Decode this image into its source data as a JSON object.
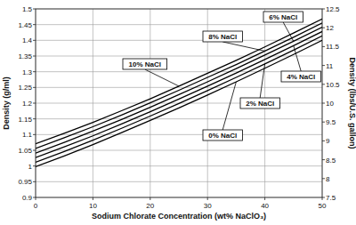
{
  "chart_data": {
    "type": "line",
    "xlabel": "Sodium Chlorate Concentration (wt% NaClO₃)",
    "ylabel": "Density (g/ml)",
    "y2label": "Density (lbs/U.S. gallon)",
    "x": [
      0,
      5,
      10,
      15,
      20,
      25,
      30,
      35,
      40,
      45,
      50
    ],
    "xlim": [
      0,
      50
    ],
    "xticks": [
      0,
      10,
      20,
      30,
      40,
      50
    ],
    "ylim": [
      0.9,
      1.5
    ],
    "yticks": [
      0.9,
      0.95,
      1,
      1.05,
      1.1,
      1.15,
      1.2,
      1.25,
      1.3,
      1.35,
      1.4,
      1.45,
      1.5
    ],
    "y2lim": [
      7.5,
      12.5
    ],
    "y2ticks": [
      7.5,
      8,
      8.5,
      9,
      9.5,
      10,
      10.5,
      11,
      11.5,
      12,
      12.5
    ],
    "grid": true,
    "series": [
      {
        "name": "0% NaCl",
        "color": "#000000",
        "values": [
          0.998,
          1.032,
          1.068,
          1.106,
          1.145,
          1.185,
          1.226,
          1.268,
          1.311,
          1.355,
          1.4
        ]
      },
      {
        "name": "2% NaCl",
        "color": "#000000",
        "values": [
          1.012,
          1.046,
          1.082,
          1.12,
          1.159,
          1.199,
          1.24,
          1.282,
          1.325,
          1.369,
          1.414
        ]
      },
      {
        "name": "4% NaCl",
        "color": "#000000",
        "values": [
          1.027,
          1.061,
          1.096,
          1.134,
          1.173,
          1.213,
          1.254,
          1.296,
          1.339,
          1.383,
          1.428
        ]
      },
      {
        "name": "6% NaCl",
        "color": "#000000",
        "values": [
          1.041,
          1.075,
          1.111,
          1.148,
          1.187,
          1.227,
          1.268,
          1.31,
          1.353,
          1.397,
          1.442
        ]
      },
      {
        "name": "8% NaCl",
        "color": "#000000",
        "values": [
          1.056,
          1.09,
          1.125,
          1.162,
          1.201,
          1.241,
          1.282,
          1.323,
          1.366,
          1.41,
          1.455
        ]
      },
      {
        "name": "10% NaCl",
        "color": "#000000",
        "values": [
          1.071,
          1.104,
          1.139,
          1.176,
          1.214,
          1.254,
          1.295,
          1.336,
          1.379,
          1.423,
          1.468
        ]
      }
    ]
  }
}
